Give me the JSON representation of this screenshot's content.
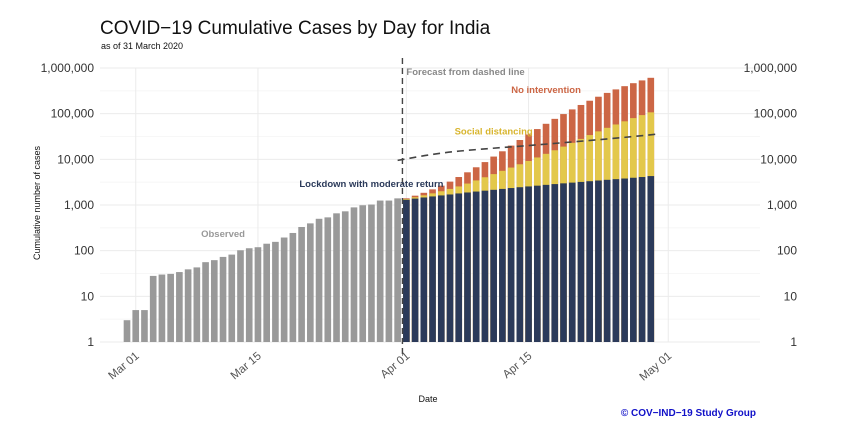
{
  "chart_data": {
    "type": "bar",
    "title": "COVID−19 Cumulative Cases by Day for India",
    "subtitle": "as of 31 March 2020",
    "xlabel": "Date",
    "ylabel": "Cumulative number of cases",
    "yscale": "log10",
    "ylim": [
      1,
      1000000
    ],
    "yticks": [
      "1",
      "10",
      "100",
      "1,000",
      "10,000",
      "100,000",
      "1,000,000"
    ],
    "ytick_values": [
      1,
      10,
      100,
      1000,
      10000,
      100000,
      1000000
    ],
    "xticks": [
      "Mar 01",
      "Mar 15",
      "Apr 01",
      "Apr 15",
      "May 01"
    ],
    "xtick_dates": [
      "2020-03-01",
      "2020-03-15",
      "2020-04-01",
      "2020-04-15",
      "2020-05-01"
    ],
    "forecast_start": "2020-03-31",
    "grid": true,
    "secondary_y_axis": true,
    "colors": {
      "observed": "#999999",
      "lockdown": "#2b3a5a",
      "social_distancing": "#e3c84b",
      "no_intervention": "#cc6645",
      "forecast_line": "#444444",
      "credit": "#1010c8"
    },
    "observed": {
      "dates": [
        "2020-02-29",
        "2020-03-01",
        "2020-03-02",
        "2020-03-03",
        "2020-03-04",
        "2020-03-05",
        "2020-03-06",
        "2020-03-07",
        "2020-03-08",
        "2020-03-09",
        "2020-03-10",
        "2020-03-11",
        "2020-03-12",
        "2020-03-13",
        "2020-03-14",
        "2020-03-15",
        "2020-03-16",
        "2020-03-17",
        "2020-03-18",
        "2020-03-19",
        "2020-03-20",
        "2020-03-21",
        "2020-03-22",
        "2020-03-23",
        "2020-03-24",
        "2020-03-25",
        "2020-03-26",
        "2020-03-27",
        "2020-03-28",
        "2020-03-29",
        "2020-03-30",
        "2020-03-31"
      ],
      "values": [
        3,
        5,
        5,
        28,
        30,
        31,
        34,
        39,
        43,
        56,
        62,
        73,
        82,
        102,
        113,
        119,
        142,
        156,
        194,
        244,
        330,
        396,
        499,
        536,
        657,
        727,
        887,
        987,
        1024,
        1251,
        1251,
        1397
      ]
    },
    "forecast": {
      "dates": [
        "2020-04-01",
        "2020-04-02",
        "2020-04-03",
        "2020-04-04",
        "2020-04-05",
        "2020-04-06",
        "2020-04-07",
        "2020-04-08",
        "2020-04-09",
        "2020-04-10",
        "2020-04-11",
        "2020-04-12",
        "2020-04-13",
        "2020-04-14",
        "2020-04-15",
        "2020-04-16",
        "2020-04-17",
        "2020-04-18",
        "2020-04-19",
        "2020-04-20",
        "2020-04-21",
        "2020-04-22",
        "2020-04-23",
        "2020-04-24",
        "2020-04-25",
        "2020-04-26",
        "2020-04-27",
        "2020-04-28",
        "2020-04-29"
      ],
      "series": [
        {
          "name": "Lockdown with moderate return",
          "values": [
            1300,
            1380,
            1460,
            1540,
            1620,
            1700,
            1790,
            1880,
            1970,
            2060,
            2150,
            2250,
            2350,
            2450,
            2550,
            2650,
            2760,
            2870,
            2980,
            3090,
            3200,
            3320,
            3440,
            3560,
            3680,
            3800,
            3950,
            4100,
            4300
          ]
        },
        {
          "name": "Social distancing",
          "values": [
            1350,
            1480,
            1630,
            1800,
            2000,
            2250,
            2550,
            2950,
            3450,
            4050,
            4750,
            5600,
            6600,
            7800,
            9200,
            11000,
            13200,
            15800,
            19000,
            23000,
            28000,
            34000,
            41000,
            49000,
            58000,
            68000,
            80000,
            93000,
            107000
          ]
        },
        {
          "name": "No intervention",
          "values": [
            1400,
            1600,
            1850,
            2200,
            2650,
            3250,
            4100,
            5200,
            6700,
            8700,
            11500,
            15000,
            20000,
            26500,
            35000,
            46000,
            60000,
            77000,
            98000,
            124000,
            155000,
            192000,
            235000,
            285000,
            340000,
            400000,
            465000,
            535000,
            610000
          ]
        }
      ]
    },
    "forecast_line": {
      "label": "Forecast from dashed line",
      "dates": [
        "2020-03-31",
        "2020-04-05",
        "2020-04-10",
        "2020-04-15",
        "2020-04-20",
        "2020-04-25",
        "2020-04-30"
      ],
      "values": [
        9500,
        14000,
        17000,
        20000,
        24000,
        29000,
        36000
      ]
    },
    "annotations": [
      {
        "text": "Observed",
        "date": "2020-03-11",
        "value": 200,
        "color": "#999999"
      },
      {
        "text": "Lockdown with moderate return",
        "date": "2020-03-28",
        "value": 2500,
        "color": "#2b3a5a"
      },
      {
        "text": "Social distancing",
        "date": "2020-04-11",
        "value": 35000,
        "color": "#d8b52e"
      },
      {
        "text": "No intervention",
        "date": "2020-04-17",
        "value": 280000,
        "color": "#cc6645"
      },
      {
        "text": "Forecast from dashed line",
        "date": "2020-04-08",
        "value": 700000,
        "color": "#888888"
      }
    ],
    "credit": "© COV−IND−19 Study Group"
  }
}
